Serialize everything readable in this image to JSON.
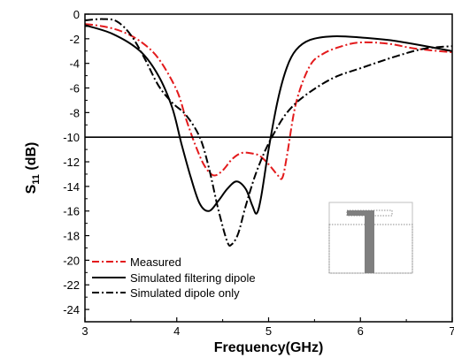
{
  "chart_data": {
    "type": "line",
    "xlabel": "Frequency(GHz)",
    "ylabel_main": "S",
    "ylabel_sub": "11",
    "ylabel_unit": " (dB)",
    "xlim": [
      3,
      7
    ],
    "ylim": [
      -25,
      0
    ],
    "xticks": [
      "3",
      "4",
      "5",
      "6",
      "7"
    ],
    "yticks": [
      "0",
      "-2",
      "-4",
      "-6",
      "-8",
      "-10",
      "-12",
      "-14",
      "-16",
      "-18",
      "-20",
      "-22",
      "-24"
    ],
    "reference_line_y": -10,
    "grid": false,
    "legend_position": "bottom-left",
    "series": [
      {
        "name": "Measured",
        "color": "#e31a1c",
        "dash": "dash-dot",
        "points": [
          [
            3.0,
            -0.8
          ],
          [
            3.2,
            -1.0
          ],
          [
            3.4,
            -1.4
          ],
          [
            3.6,
            -2.2
          ],
          [
            3.8,
            -3.6
          ],
          [
            4.0,
            -6.2
          ],
          [
            4.1,
            -8.5
          ],
          [
            4.2,
            -10.6
          ],
          [
            4.3,
            -12.3
          ],
          [
            4.4,
            -13.1
          ],
          [
            4.5,
            -12.7
          ],
          [
            4.6,
            -11.8
          ],
          [
            4.7,
            -11.3
          ],
          [
            4.8,
            -11.3
          ],
          [
            4.9,
            -11.5
          ],
          [
            5.0,
            -12.2
          ],
          [
            5.1,
            -13.1
          ],
          [
            5.15,
            -13.3
          ],
          [
            5.2,
            -11.5
          ],
          [
            5.3,
            -7.2
          ],
          [
            5.45,
            -4.2
          ],
          [
            5.6,
            -3.2
          ],
          [
            5.8,
            -2.6
          ],
          [
            6.0,
            -2.3
          ],
          [
            6.3,
            -2.4
          ],
          [
            6.6,
            -2.8
          ],
          [
            7.0,
            -3.1
          ]
        ]
      },
      {
        "name": "Simulated filtering dipole",
        "color": "#000000",
        "dash": "solid",
        "points": [
          [
            3.0,
            -0.9
          ],
          [
            3.3,
            -1.6
          ],
          [
            3.6,
            -3.0
          ],
          [
            3.8,
            -5.0
          ],
          [
            3.95,
            -7.6
          ],
          [
            4.05,
            -10.5
          ],
          [
            4.15,
            -13.2
          ],
          [
            4.25,
            -15.4
          ],
          [
            4.35,
            -16.0
          ],
          [
            4.45,
            -15.2
          ],
          [
            4.55,
            -14.2
          ],
          [
            4.65,
            -13.6
          ],
          [
            4.75,
            -14.2
          ],
          [
            4.82,
            -15.5
          ],
          [
            4.87,
            -16.2
          ],
          [
            4.92,
            -14.8
          ],
          [
            5.0,
            -11.0
          ],
          [
            5.1,
            -7.0
          ],
          [
            5.2,
            -4.3
          ],
          [
            5.3,
            -2.9
          ],
          [
            5.45,
            -2.1
          ],
          [
            5.7,
            -1.8
          ],
          [
            6.0,
            -1.9
          ],
          [
            6.4,
            -2.2
          ],
          [
            7.0,
            -3.0
          ]
        ]
      },
      {
        "name": "Simulated dipole only",
        "color": "#000000",
        "dash": "dash-dot",
        "points": [
          [
            3.0,
            -0.5
          ],
          [
            3.2,
            -0.4
          ],
          [
            3.35,
            -0.6
          ],
          [
            3.5,
            -1.7
          ],
          [
            3.65,
            -3.6
          ],
          [
            3.8,
            -5.8
          ],
          [
            3.95,
            -7.2
          ],
          [
            4.1,
            -8.2
          ],
          [
            4.25,
            -10.0
          ],
          [
            4.35,
            -12.5
          ],
          [
            4.45,
            -15.8
          ],
          [
            4.55,
            -18.5
          ],
          [
            4.6,
            -18.7
          ],
          [
            4.67,
            -17.8
          ],
          [
            4.75,
            -15.6
          ],
          [
            4.85,
            -13.2
          ],
          [
            4.95,
            -11.3
          ],
          [
            5.05,
            -9.8
          ],
          [
            5.2,
            -8.0
          ],
          [
            5.4,
            -6.6
          ],
          [
            5.7,
            -5.2
          ],
          [
            6.0,
            -4.4
          ],
          [
            6.4,
            -3.4
          ],
          [
            6.7,
            -2.8
          ],
          [
            7.0,
            -2.6
          ]
        ]
      }
    ]
  }
}
